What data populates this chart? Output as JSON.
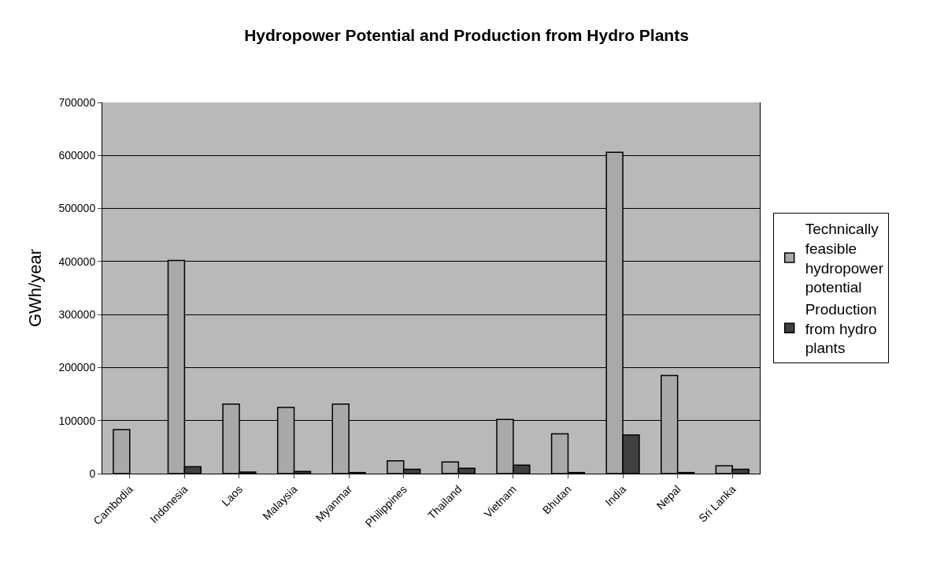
{
  "chart_data": {
    "type": "bar",
    "title": "Hydropower Potential and Production from Hydro Plants",
    "ylabel": "GWh/year",
    "categories": [
      "Cambodia",
      "Indonesia",
      "Laos",
      "Malaysia",
      "Myanmar",
      "Philippines",
      "Thailand",
      "Vietnam",
      "Bhutan",
      "India",
      "Nepal",
      "Sri Lanka"
    ],
    "series": [
      {
        "name": "Technically feasible hydropower potential",
        "color": "#a9a9a9",
        "values": [
          83000,
          402000,
          131000,
          125000,
          131000,
          24000,
          22000,
          102000,
          75000,
          606000,
          185000,
          15000
        ]
      },
      {
        "name": "Production from hydro plants",
        "color": "#404040",
        "values": [
          null,
          13000,
          3000,
          4000,
          2000,
          8000,
          10000,
          16000,
          2000,
          73000,
          2000,
          8000
        ]
      }
    ],
    "ylim": [
      0,
      700000
    ],
    "yticks": [
      0,
      100000,
      200000,
      300000,
      400000,
      500000,
      600000,
      700000
    ],
    "grid": "y",
    "legend": "right"
  }
}
